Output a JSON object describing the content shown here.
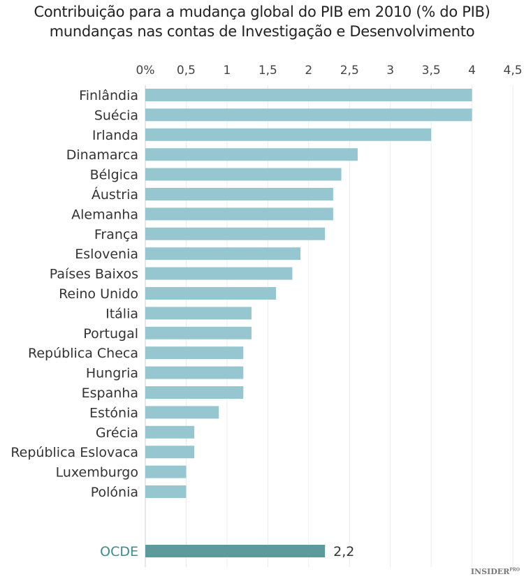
{
  "chart_data": {
    "type": "bar",
    "orientation": "horizontal",
    "title": "Contribuição para a mudança global do PIB em 2010 (% do PIB)",
    "subtitle": "mundanças nas contas de Investigação e Desenvolvimento",
    "xlim": [
      0,
      4.5
    ],
    "x_ticks": [
      "0%",
      "0,5",
      "1",
      "1,5",
      "2",
      "2,5",
      "3",
      "3,5",
      "4",
      "4,5"
    ],
    "grid": true,
    "categories": [
      "Finlândia",
      "Suécia",
      "Irlanda",
      "Dinamarca",
      "Bélgica",
      "Áustria",
      "Alemanha",
      "França",
      "Eslovenia",
      "Países Baixos",
      "Reino Unido",
      "Itália",
      "Portugal",
      "República Checa",
      "Hungria",
      "Espanha",
      "Estónia",
      "Grécia",
      "República Eslovaca",
      "Luxemburgo",
      "Polónia"
    ],
    "values": [
      4.0,
      4.0,
      3.5,
      2.6,
      2.4,
      2.3,
      2.3,
      2.2,
      1.9,
      1.8,
      1.6,
      1.3,
      1.3,
      1.2,
      1.2,
      1.2,
      0.9,
      0.6,
      0.6,
      0.5,
      0.5
    ],
    "highlight": {
      "category": "OCDE",
      "value": 2.2,
      "label": "2,2"
    },
    "colors": {
      "bar": "#96c7d0",
      "highlight": "#5e9a9c",
      "highlight_text": "#3f8a8e"
    }
  },
  "logo": {
    "text": "INSIDER",
    "sup": "PRO"
  }
}
